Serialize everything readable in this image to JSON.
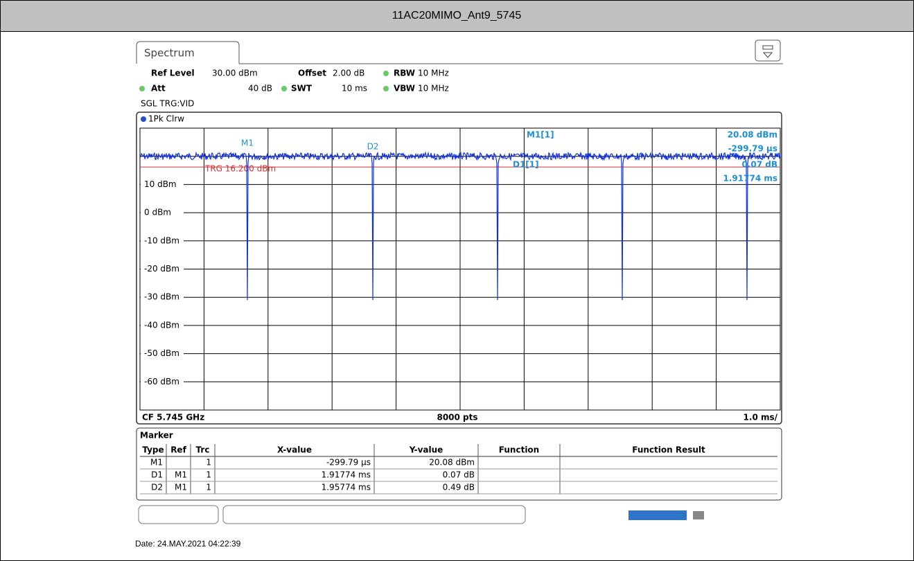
{
  "header": {
    "title": "11AC20MIMO_Ant9_5745"
  },
  "tab": "Spectrum",
  "settings": {
    "ref_level_label": "Ref Level",
    "ref_level": "30.00 dBm",
    "offset_label": "Offset",
    "offset": "2.00 dB",
    "rbw_label": "RBW",
    "rbw": "10 MHz",
    "att_label": "Att",
    "att": "40 dB",
    "swt_label": "SWT",
    "swt": "10 ms",
    "vbw_label": "VBW",
    "vbw": "10 MHz",
    "mode": "SGL TRG:VID"
  },
  "trace_label": "1Pk Clrw",
  "plot": {
    "y_labels": [
      "10 dBm",
      "0 dBm",
      "-10 dBm",
      "-20 dBm",
      "-30 dBm",
      "-40 dBm",
      "-50 dBm",
      "-60 dBm"
    ],
    "trigger": "TRG 16.200 dBm",
    "marker_m1": "M1",
    "marker_d2": "D2",
    "readout": [
      "M1[1]",
      "20.08 dBm",
      "-299.79 µs",
      "D1[1]",
      "0.07 dB",
      "1.91774 ms"
    ],
    "footer": {
      "left": "CF 5.745 GHz",
      "center": "8000 pts",
      "right": "1.0 ms/"
    }
  },
  "marker_table": {
    "title": "Marker",
    "headers": [
      "Type",
      "Ref",
      "Trc",
      "X-value",
      "Y-value",
      "Function",
      "Function Result"
    ],
    "rows": [
      [
        "M1",
        "",
        "1",
        "-299.79 µs",
        "20.08 dBm",
        "",
        ""
      ],
      [
        "D1",
        "M1",
        "1",
        "1.91774 ms",
        "0.07 dB",
        "",
        ""
      ],
      [
        "D2",
        "M1",
        "1",
        "1.95774 ms",
        "0.49 dB",
        "",
        ""
      ]
    ]
  },
  "date": "Date: 24.MAY.2021 04:22:39"
}
